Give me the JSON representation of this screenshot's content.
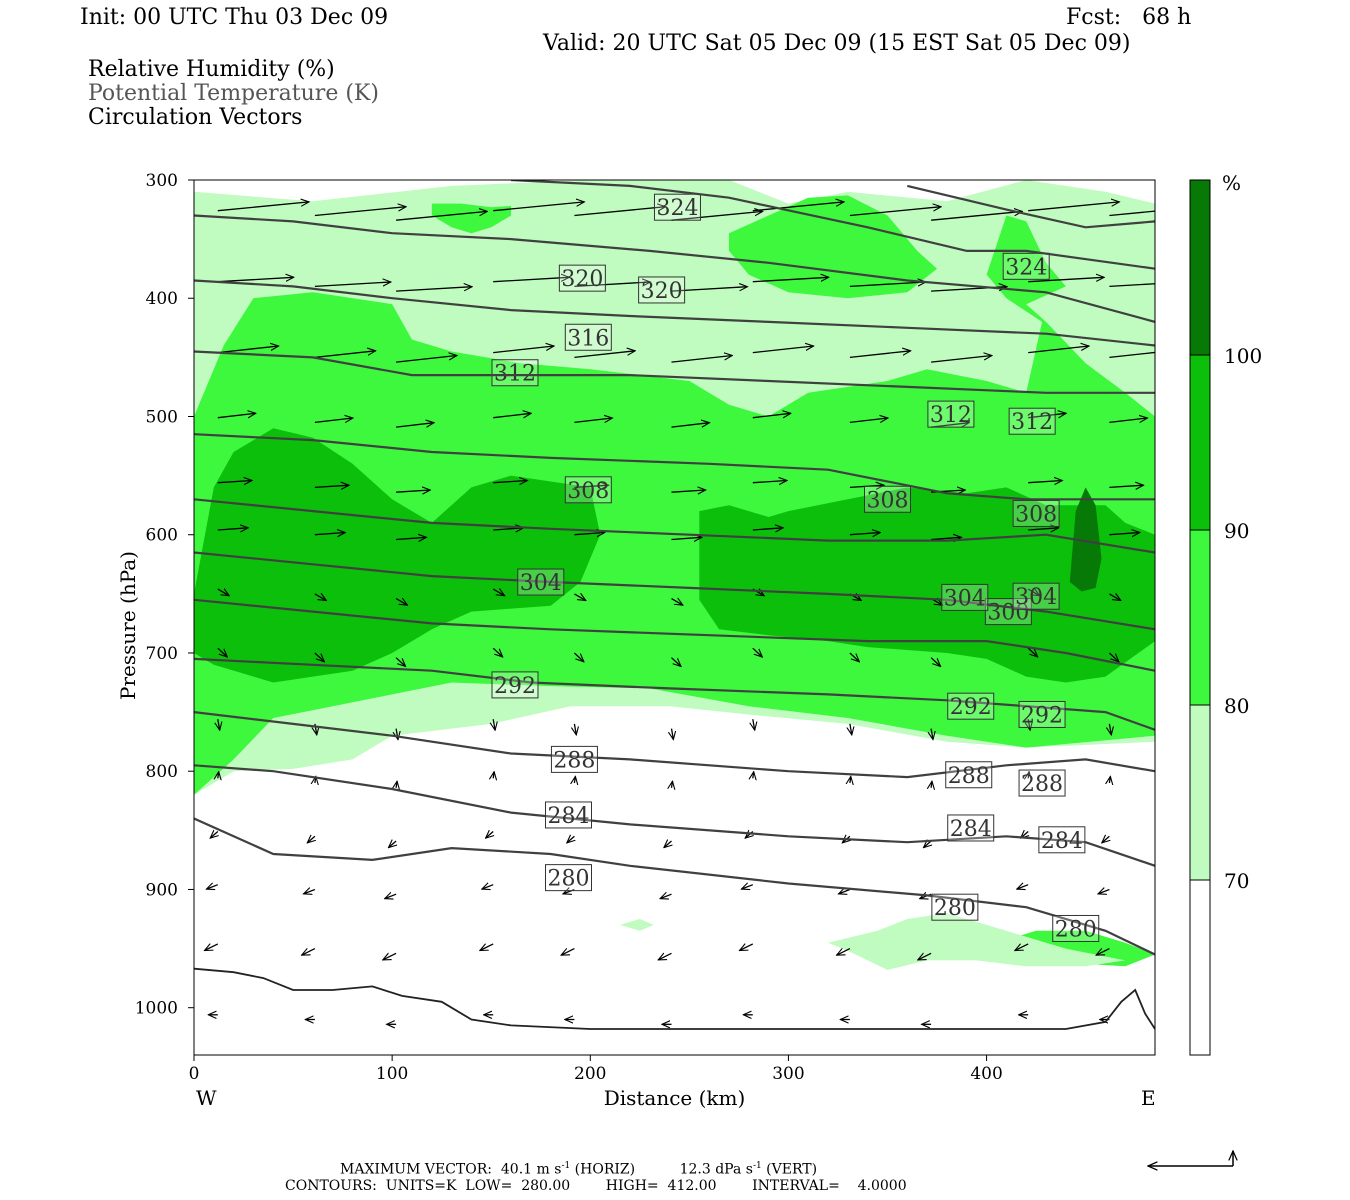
{
  "header": {
    "init": "Init: 00 UTC Thu 03 Dec 09",
    "fcst": "Fcst:   68 h",
    "valid": "Valid: 20 UTC Sat 05 Dec 09 (15 EST Sat 05 Dec 09)"
  },
  "legend_lines": {
    "rh": "Relative Humidity (%)",
    "theta": "Potential Temperature (K)",
    "vectors": "Circulation Vectors"
  },
  "footer": {
    "maxvec_label": "MAXIMUM VECTOR:",
    "horiz": "40.1 m s",
    "horiz_tail": " (HORIZ)",
    "vert": "12.3 dPa s",
    "vert_tail": " (VERT)",
    "exp": "-1",
    "contours": "CONTOURS:  UNITS=K  LOW=  280.00        HIGH=  412.00        INTERVAL=    4.0000"
  },
  "colors": {
    "rh70": "#c0fbc0",
    "rh80": "#3df83d",
    "rh90": "#0bbf0b",
    "rh100": "#067906",
    "contour": "#404040"
  },
  "chart_data": {
    "type": "heatmap",
    "xlabel": "Distance (km)",
    "ylabel": "Pressure (hPa)",
    "xlim": [
      0,
      485
    ],
    "ylim": [
      1040,
      300
    ],
    "x_ticks": [
      0,
      100,
      200,
      300,
      400
    ],
    "y_ticks": [
      300,
      400,
      500,
      600,
      700,
      800,
      900,
      1000
    ],
    "x_end_labels": {
      "left": "W",
      "right": "E"
    },
    "colorbar": {
      "unit": "%",
      "levels": [
        70,
        80,
        90,
        100
      ],
      "colors": [
        "#ffffff",
        "#c0fbc0",
        "#3df83d",
        "#0bbf0b",
        "#067906"
      ]
    },
    "theta_contours": [
      {
        "value": 280,
        "points": [
          [
            0,
            840
          ],
          [
            40,
            870
          ],
          [
            90,
            875
          ],
          [
            130,
            865
          ],
          [
            180,
            870
          ],
          [
            220,
            880
          ],
          [
            300,
            895
          ],
          [
            370,
            905
          ],
          [
            420,
            915
          ],
          [
            460,
            935
          ],
          [
            485,
            955
          ]
        ],
        "labels": [
          [
            189,
            890
          ],
          [
            384,
            915
          ],
          [
            445,
            933
          ]
        ]
      },
      {
        "value": 284,
        "points": [
          [
            0,
            795
          ],
          [
            40,
            800
          ],
          [
            100,
            815
          ],
          [
            160,
            835
          ],
          [
            220,
            845
          ],
          [
            300,
            855
          ],
          [
            360,
            860
          ],
          [
            410,
            855
          ],
          [
            450,
            860
          ],
          [
            485,
            880
          ]
        ],
        "labels": [
          [
            189,
            837
          ],
          [
            392,
            848
          ],
          [
            438,
            858
          ]
        ]
      },
      {
        "value": 288,
        "points": [
          [
            0,
            750
          ],
          [
            50,
            760
          ],
          [
            100,
            770
          ],
          [
            160,
            785
          ],
          [
            220,
            790
          ],
          [
            300,
            800
          ],
          [
            360,
            805
          ],
          [
            410,
            795
          ],
          [
            450,
            790
          ],
          [
            485,
            800
          ]
        ],
        "labels": [
          [
            192,
            790
          ],
          [
            391,
            803
          ],
          [
            428,
            810
          ]
        ]
      },
      {
        "value": 292,
        "points": [
          [
            0,
            705
          ],
          [
            60,
            710
          ],
          [
            120,
            715
          ],
          [
            170,
            725
          ],
          [
            240,
            730
          ],
          [
            320,
            735
          ],
          [
            380,
            740
          ],
          [
            420,
            745
          ],
          [
            460,
            750
          ],
          [
            485,
            765
          ]
        ],
        "labels": [
          [
            162,
            727
          ],
          [
            392,
            745
          ],
          [
            428,
            752
          ]
        ]
      },
      {
        "value": 300,
        "points": [
          [
            0,
            655
          ],
          [
            60,
            665
          ],
          [
            120,
            675
          ],
          [
            180,
            680
          ],
          [
            260,
            685
          ],
          [
            340,
            690
          ],
          [
            400,
            690
          ],
          [
            440,
            700
          ],
          [
            485,
            715
          ]
        ],
        "labels": [
          [
            411,
            665
          ]
        ]
      },
      {
        "value": 304,
        "points": [
          [
            0,
            615
          ],
          [
            60,
            625
          ],
          [
            120,
            635
          ],
          [
            180,
            640
          ],
          [
            250,
            645
          ],
          [
            320,
            650
          ],
          [
            380,
            655
          ],
          [
            430,
            665
          ],
          [
            485,
            680
          ]
        ],
        "labels": [
          [
            175,
            640
          ],
          [
            389,
            653
          ],
          [
            425,
            652
          ]
        ]
      },
      {
        "value": 308,
        "points": [
          [
            0,
            570
          ],
          [
            60,
            580
          ],
          [
            120,
            590
          ],
          [
            180,
            595
          ],
          [
            250,
            600
          ],
          [
            320,
            605
          ],
          [
            380,
            605
          ],
          [
            430,
            600
          ],
          [
            485,
            615
          ]
        ],
        "labels": [
          [
            199,
            562
          ],
          [
            350,
            570
          ],
          [
            425,
            582
          ]
        ]
      },
      {
        "value": 312,
        "points": [
          [
            0,
            515
          ],
          [
            60,
            520
          ],
          [
            120,
            530
          ],
          [
            180,
            535
          ],
          [
            260,
            540
          ],
          [
            320,
            545
          ],
          [
            380,
            565
          ],
          [
            420,
            570
          ],
          [
            485,
            570
          ]
        ],
        "labels": [
          [
            162,
            463
          ],
          [
            382,
            498
          ],
          [
            423,
            504
          ]
        ]
      },
      {
        "value": 316,
        "points": [
          [
            0,
            445
          ],
          [
            60,
            450
          ],
          [
            110,
            465
          ],
          [
            160,
            465
          ],
          [
            220,
            465
          ],
          [
            290,
            470
          ],
          [
            360,
            475
          ],
          [
            430,
            480
          ],
          [
            485,
            480
          ]
        ],
        "labels": [
          [
            199,
            433
          ]
        ]
      },
      {
        "value": 320,
        "points": [
          [
            0,
            385
          ],
          [
            50,
            390
          ],
          [
            100,
            400
          ],
          [
            160,
            410
          ],
          [
            220,
            415
          ],
          [
            290,
            420
          ],
          [
            360,
            425
          ],
          [
            430,
            430
          ],
          [
            485,
            440
          ]
        ],
        "labels": [
          [
            196,
            383
          ],
          [
            236,
            393
          ]
        ]
      },
      {
        "value": 324,
        "points": [
          [
            0,
            330
          ],
          [
            50,
            335
          ],
          [
            100,
            345
          ],
          [
            160,
            350
          ],
          [
            230,
            360
          ],
          [
            290,
            370
          ],
          [
            360,
            385
          ],
          [
            430,
            395
          ],
          [
            485,
            420
          ]
        ],
        "labels": [
          [
            244,
            323
          ],
          [
            420,
            373
          ]
        ]
      },
      {
        "value": 328,
        "points": [
          [
            160,
            300
          ],
          [
            220,
            305
          ],
          [
            270,
            315
          ],
          [
            340,
            340
          ],
          [
            390,
            360
          ],
          [
            420,
            360
          ],
          [
            485,
            375
          ]
        ],
        "labels": []
      },
      {
        "value": 332,
        "points": [
          [
            360,
            305
          ],
          [
            410,
            325
          ],
          [
            450,
            340
          ],
          [
            485,
            335
          ]
        ],
        "labels": []
      }
    ],
    "surface_line": [
      [
        0,
        967
      ],
      [
        20,
        970
      ],
      [
        35,
        975
      ],
      [
        50,
        985
      ],
      [
        70,
        985
      ],
      [
        90,
        982
      ],
      [
        105,
        990
      ],
      [
        125,
        995
      ],
      [
        140,
        1010
      ],
      [
        160,
        1015
      ],
      [
        200,
        1018
      ],
      [
        260,
        1018
      ],
      [
        320,
        1018
      ],
      [
        380,
        1018
      ],
      [
        440,
        1018
      ],
      [
        460,
        1012
      ],
      [
        468,
        995
      ],
      [
        475,
        985
      ],
      [
        480,
        1005
      ],
      [
        485,
        1018
      ]
    ],
    "max_vector": {
      "horiz": 40.1,
      "horiz_unit": "m s-1",
      "vert": 12.3,
      "vert_unit": "dPa s-1"
    },
    "contour_info": {
      "units": "K",
      "low": 280.0,
      "high": 412.0,
      "interval": 4.0
    }
  }
}
